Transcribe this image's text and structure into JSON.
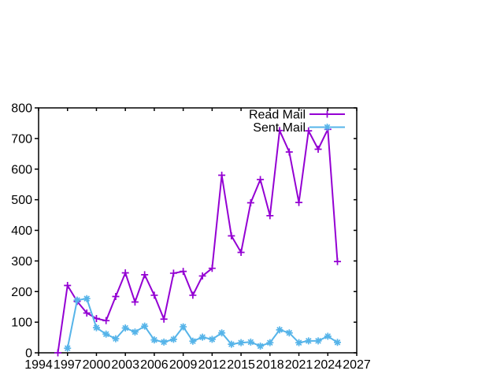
{
  "window": {
    "background": "#ffffff",
    "axis_color": "#000000"
  },
  "chart_data": {
    "type": "line",
    "title": "",
    "xlabel": "",
    "ylabel": "",
    "xlim": [
      1994,
      2027
    ],
    "ylim": [
      0,
      800
    ],
    "x_ticks": [
      1994,
      1997,
      2000,
      2003,
      2006,
      2009,
      2012,
      2015,
      2018,
      2021,
      2024,
      2027
    ],
    "y_ticks": [
      0,
      100,
      200,
      300,
      400,
      500,
      600,
      700,
      800
    ],
    "grid": false,
    "legend_position": "top-right-inside",
    "series": [
      {
        "name": "Read Mail",
        "color": "#9400d3",
        "marker": "plus",
        "x": [
          1996,
          1997,
          1998,
          1999,
          2000,
          2001,
          2002,
          2003,
          2004,
          2005,
          2006,
          2007,
          2008,
          2009,
          2010,
          2011,
          2012,
          2013,
          2014,
          2015,
          2016,
          2017,
          2018,
          2019,
          2020,
          2021,
          2022,
          2023,
          2024,
          2025
        ],
        "values": [
          0,
          220,
          168,
          130,
          112,
          105,
          184,
          261,
          166,
          255,
          188,
          110,
          260,
          266,
          188,
          251,
          276,
          580,
          382,
          328,
          490,
          566,
          448,
          726,
          656,
          491,
          725,
          665,
          730,
          298
        ]
      },
      {
        "name": "Sent Mail",
        "color": "#56b4e9",
        "marker": "asterisk",
        "x": [
          1997,
          1998,
          1999,
          2000,
          2001,
          2002,
          2003,
          2004,
          2005,
          2006,
          2007,
          2008,
          2009,
          2010,
          2011,
          2012,
          2013,
          2014,
          2015,
          2016,
          2017,
          2018,
          2019,
          2020,
          2021,
          2022,
          2023,
          2024,
          2025
        ],
        "values": [
          15,
          172,
          177,
          82,
          61,
          46,
          81,
          68,
          87,
          42,
          35,
          44,
          85,
          38,
          51,
          44,
          65,
          28,
          33,
          35,
          22,
          33,
          75,
          65,
          33,
          39,
          39,
          54,
          34
        ]
      }
    ]
  }
}
